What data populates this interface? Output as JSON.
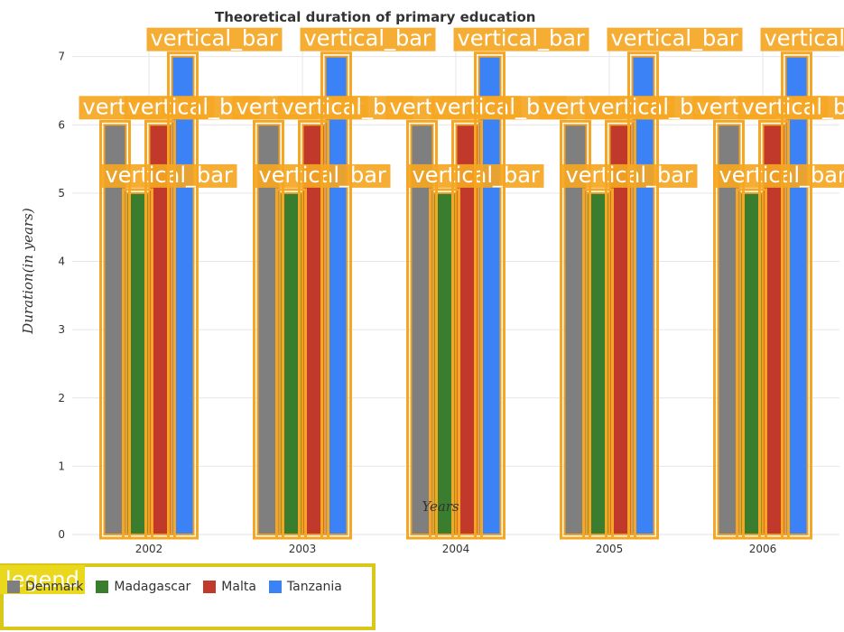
{
  "chart_data": {
    "type": "bar",
    "title": "Theoretical duration of primary education",
    "xlabel": "Years",
    "ylabel": "Duration(in years)",
    "categories": [
      "2002",
      "2003",
      "2004",
      "2005",
      "2006"
    ],
    "ylim": [
      0,
      7.3
    ],
    "yticks": [
      0,
      1,
      2,
      3,
      4,
      5,
      6,
      7
    ],
    "grid": true,
    "legend_title": "legend",
    "legend_position": "bottom-left",
    "annotation_text": "vertical_bar",
    "series": [
      {
        "name": "Denmark",
        "color": "#7f7f7f",
        "values": [
          6,
          6,
          6,
          6,
          6
        ]
      },
      {
        "name": "Madagascar",
        "color": "#3b7d2e",
        "values": [
          5,
          5,
          5,
          5,
          5
        ]
      },
      {
        "name": "Malta",
        "color": "#c0392b",
        "values": [
          6,
          6,
          6,
          6,
          6
        ]
      },
      {
        "name": "Tanzania",
        "color": "#3b82f6",
        "values": [
          7,
          7,
          7,
          7,
          7
        ]
      }
    ]
  }
}
